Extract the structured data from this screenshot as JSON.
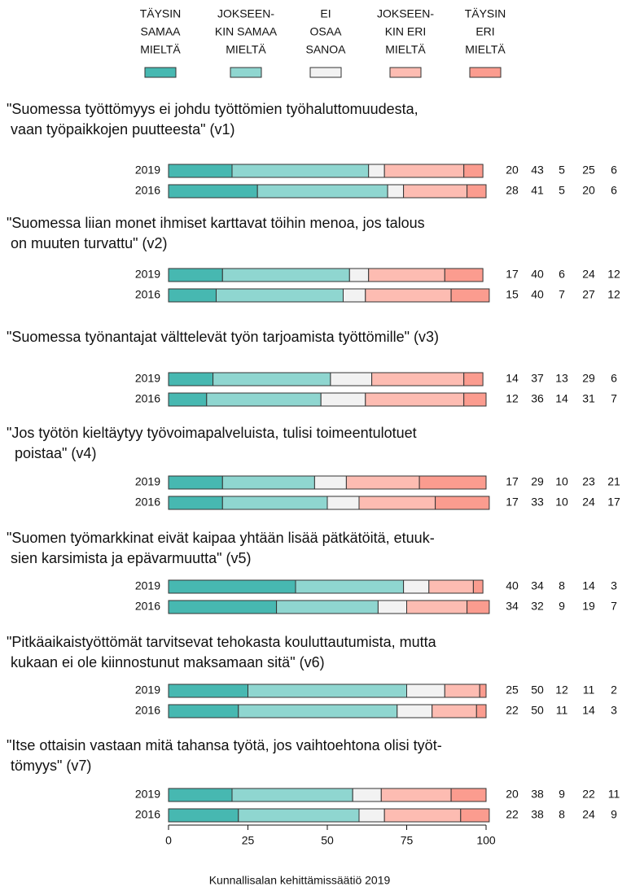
{
  "legend": {
    "items": [
      {
        "name": [
          "TÄYSIN",
          "SAMAA",
          "MIELTÄ"
        ],
        "color": "#47b8b1"
      },
      {
        "name": [
          "JOKSEEN-",
          "KIN SAMAA",
          "MIELTÄ"
        ],
        "color": "#8fd6d0"
      },
      {
        "name": [
          "EI",
          "OSAA",
          "SANOA"
        ],
        "color": "#f2f2f2"
      },
      {
        "name": [
          "JOKSEEN-",
          "KIN ERI",
          "MIELTÄ"
        ],
        "color": "#fdbcb2"
      },
      {
        "name": [
          "TÄYSIN",
          "ERI",
          "MIELTÄ"
        ],
        "color": "#fb9c8f"
      }
    ]
  },
  "chart_data": [
    {
      "type": "bar",
      "orientation": "horizontal",
      "stacked": true,
      "title": [
        "\"Suomessa työttömyys ei johdu työttömien työhaluttomuudesta,",
        " vaan työpaikkojen puutteesta\" (v1)"
      ],
      "categories": [
        "2019",
        "2016"
      ],
      "values": [
        [
          20,
          43,
          5,
          25,
          6
        ],
        [
          28,
          41,
          5,
          20,
          6
        ]
      ],
      "xlim": [
        0,
        100
      ]
    },
    {
      "type": "bar",
      "orientation": "horizontal",
      "stacked": true,
      "title": [
        "\"Suomessa liian monet ihmiset karttavat töihin menoa, jos talous",
        " on muuten turvattu\" (v2)"
      ],
      "categories": [
        "2019",
        "2016"
      ],
      "values": [
        [
          17,
          40,
          6,
          24,
          12
        ],
        [
          15,
          40,
          7,
          27,
          12
        ]
      ],
      "xlim": [
        0,
        100
      ]
    },
    {
      "type": "bar",
      "orientation": "horizontal",
      "stacked": true,
      "title": [
        "\"Suomessa työnantajat välttelevät työn tarjoamista työttömille\" (v3)"
      ],
      "categories": [
        "2019",
        "2016"
      ],
      "values": [
        [
          14,
          37,
          13,
          29,
          6
        ],
        [
          12,
          36,
          14,
          31,
          7
        ]
      ],
      "xlim": [
        0,
        100
      ]
    },
    {
      "type": "bar",
      "orientation": "horizontal",
      "stacked": true,
      "title": [
        "\"Jos työtön kieltäytyy työvoimapalveluista, tulisi toimeentulotuet",
        "  poistaa\" (v4)"
      ],
      "categories": [
        "2019",
        "2016"
      ],
      "values": [
        [
          17,
          29,
          10,
          23,
          21
        ],
        [
          17,
          33,
          10,
          24,
          17
        ]
      ],
      "xlim": [
        0,
        100
      ]
    },
    {
      "type": "bar",
      "orientation": "horizontal",
      "stacked": true,
      "title": [
        "\"Suomen työmarkkinat eivät kaipaa yhtään lisää pätkätöitä, etuuk-",
        " sien karsimista ja epävarmuutta\" (v5)"
      ],
      "categories": [
        "2019",
        "2016"
      ],
      "values": [
        [
          40,
          34,
          8,
          14,
          3
        ],
        [
          34,
          32,
          9,
          19,
          7
        ]
      ],
      "xlim": [
        0,
        100
      ]
    },
    {
      "type": "bar",
      "orientation": "horizontal",
      "stacked": true,
      "title": [
        "\"Pitkäaikaistyöttömät tarvitsevat tehokasta kouluttautumista, mutta",
        " kukaan ei ole kiinnostunut maksamaan sitä\" (v6)"
      ],
      "categories": [
        "2019",
        "2016"
      ],
      "values": [
        [
          25,
          50,
          12,
          11,
          2
        ],
        [
          22,
          50,
          11,
          14,
          3
        ]
      ],
      "xlim": [
        0,
        100
      ]
    },
    {
      "type": "bar",
      "orientation": "horizontal",
      "stacked": true,
      "title": [
        "\"Itse ottaisin vastaan mitä tahansa työtä, jos vaihtoehtona olisi työt-",
        " tömyys\" (v7)"
      ],
      "categories": [
        "2019",
        "2016"
      ],
      "values": [
        [
          20,
          38,
          9,
          22,
          11
        ],
        [
          22,
          38,
          8,
          24,
          9
        ]
      ],
      "xlim": [
        0,
        100
      ],
      "xticks": [
        0,
        25,
        50,
        75,
        100
      ]
    }
  ],
  "source": "Kunnallisalan kehittämissäätiö 2019"
}
